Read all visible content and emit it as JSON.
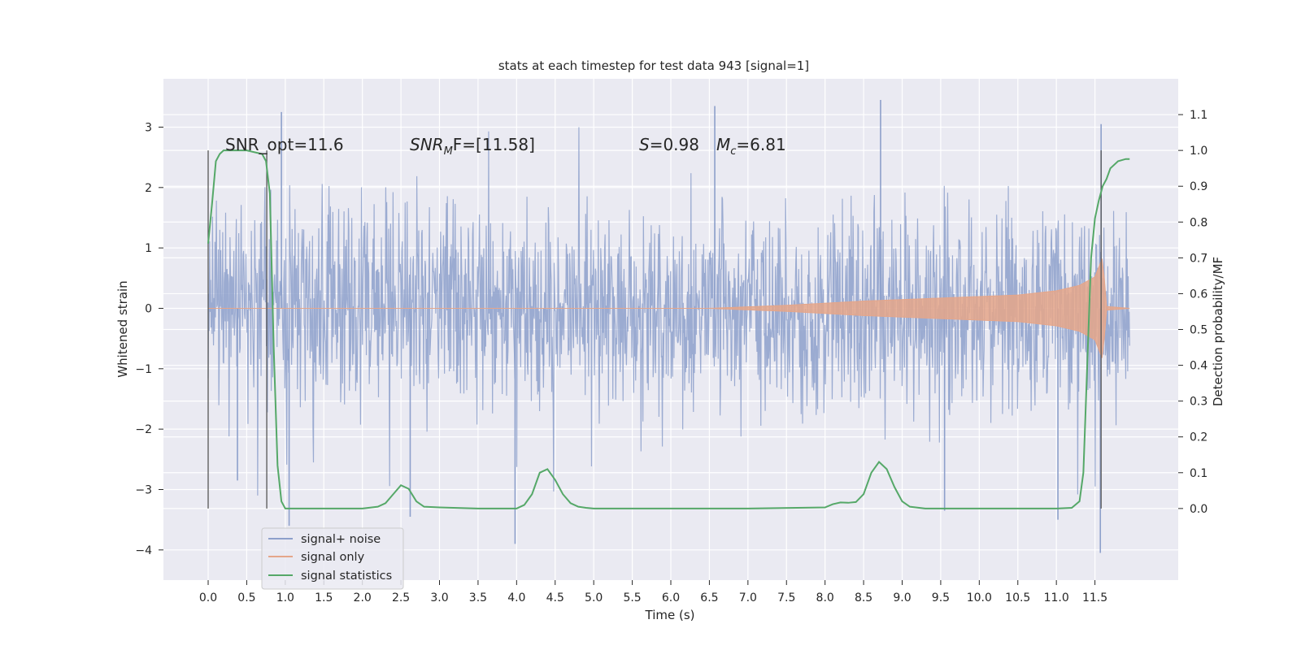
{
  "chart_data": {
    "type": "line",
    "title": "stats at each timestep for test data 943 [signal=1]",
    "xlabel": "Time (s)",
    "ylabel": "Whitened strain",
    "ylabel_right": "Detection probability/MF",
    "xlim": [
      -0.58,
      12.58
    ],
    "ylim": [
      -4.5,
      3.8
    ],
    "ylim_right": [
      -0.2,
      1.2
    ],
    "xticks": [
      "0.0",
      "0.5",
      "1.0",
      "1.5",
      "2.0",
      "2.5",
      "3.0",
      "3.5",
      "4.0",
      "4.5",
      "5.0",
      "5.5",
      "6.0",
      "6.5",
      "7.0",
      "7.5",
      "8.0",
      "8.5",
      "9.0",
      "9.5",
      "10.0",
      "10.5",
      "11.0",
      "11.5"
    ],
    "yticks_left": [
      "3",
      "2",
      "1",
      "0",
      "−1",
      "−2",
      "−3",
      "−4"
    ],
    "yticks_right": [
      "1.1",
      "1.0",
      "0.9",
      "0.8",
      "0.7",
      "0.6",
      "0.5",
      "0.4",
      "0.3",
      "0.2",
      "0.1",
      "0.0"
    ],
    "grid": true,
    "legend_position": "lower-left",
    "annotations": {
      "snr_opt": "SNR_opt=11.6",
      "snr_mf_sym": "SNR",
      "snr_mf_sub": "M",
      "snr_mf_rest": "F=[11.58]",
      "s_sym": "S",
      "s_val": "=0.98",
      "mc_sym": "M",
      "mc_sub": "c",
      "mc_val": "=6.81"
    },
    "vertical_markers": [
      0.0,
      0.76,
      11.58
    ],
    "series": [
      {
        "name": "signal+ noise",
        "color": "#8da0cb",
        "axis": "left",
        "time_range": [
          0.0,
          11.95
        ],
        "envelope": {
          "t": [
            0.0,
            12.0
          ],
          "typical_lo": [
            -1.5,
            -1.5
          ],
          "typical_hi": [
            1.5,
            1.5
          ]
        },
        "spikes": [
          {
            "t": 0.95,
            "y": 3.25
          },
          {
            "t": 1.05,
            "y": -3.6
          },
          {
            "t": 0.38,
            "y": -2.85
          },
          {
            "t": 2.62,
            "y": -3.45
          },
          {
            "t": 3.98,
            "y": -3.9
          },
          {
            "t": 4.35,
            "y": -0.95
          },
          {
            "t": 6.57,
            "y": 3.35
          },
          {
            "t": 8.72,
            "y": 3.45
          },
          {
            "t": 9.55,
            "y": -3.35
          },
          {
            "t": 11.02,
            "y": -3.5
          },
          {
            "t": 11.57,
            "y": -4.05
          },
          {
            "t": 11.58,
            "y": 3.05
          }
        ]
      },
      {
        "name": "signal only",
        "color": "#e5a68a",
        "axis": "left",
        "time_range": [
          0.0,
          11.95
        ],
        "envelope": {
          "t": [
            0.0,
            6.5,
            7.5,
            8.5,
            9.5,
            10.5,
            11.0,
            11.3,
            11.5,
            11.6,
            11.65,
            11.95
          ],
          "amplitude": [
            0.0,
            0.0,
            0.05,
            0.12,
            0.17,
            0.22,
            0.29,
            0.38,
            0.52,
            0.85,
            0.03,
            0.0
          ]
        }
      },
      {
        "name": "signal statistics",
        "color": "#55a868",
        "axis": "right",
        "t": [
          0.0,
          0.05,
          0.1,
          0.15,
          0.2,
          0.3,
          0.5,
          0.7,
          0.75,
          0.8,
          0.85,
          0.9,
          0.95,
          1.0,
          1.1,
          1.5,
          2.0,
          2.2,
          2.3,
          2.4,
          2.5,
          2.6,
          2.7,
          2.8,
          3.0,
          3.5,
          4.0,
          4.1,
          4.2,
          4.3,
          4.4,
          4.5,
          4.6,
          4.7,
          4.8,
          4.9,
          5.0,
          6.0,
          7.0,
          8.0,
          8.1,
          8.2,
          8.3,
          8.4,
          8.5,
          8.6,
          8.7,
          8.8,
          8.9,
          9.0,
          9.1,
          9.3,
          10.0,
          11.0,
          11.2,
          11.3,
          11.35,
          11.4,
          11.45,
          11.5,
          11.55,
          11.6,
          11.65,
          11.7,
          11.8,
          11.9,
          11.95
        ],
        "values": [
          0.74,
          0.85,
          0.97,
          0.99,
          1.0,
          1.0,
          1.0,
          0.99,
          0.97,
          0.88,
          0.45,
          0.12,
          0.02,
          0.0,
          0.0,
          0.0,
          0.0,
          0.005,
          0.015,
          0.04,
          0.065,
          0.055,
          0.02,
          0.005,
          0.003,
          0.0,
          0.0,
          0.01,
          0.04,
          0.1,
          0.11,
          0.08,
          0.04,
          0.015,
          0.005,
          0.002,
          0.0,
          0.0,
          0.0,
          0.003,
          0.012,
          0.017,
          0.016,
          0.018,
          0.04,
          0.1,
          0.13,
          0.11,
          0.06,
          0.02,
          0.005,
          0.0,
          0.0,
          0.0,
          0.002,
          0.02,
          0.1,
          0.4,
          0.7,
          0.81,
          0.86,
          0.9,
          0.92,
          0.95,
          0.97,
          0.976,
          0.976
        ]
      }
    ]
  }
}
